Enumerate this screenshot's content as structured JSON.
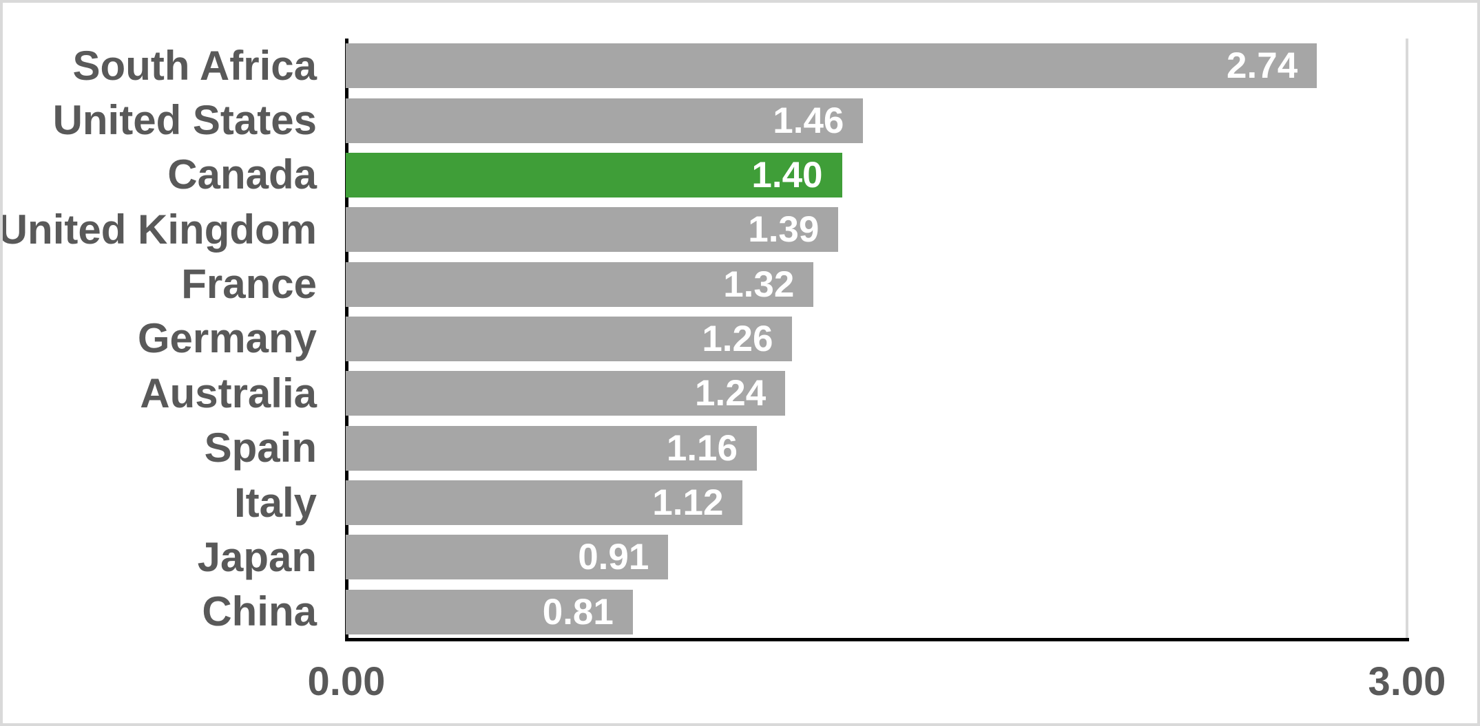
{
  "chart_data": {
    "type": "bar",
    "orientation": "horizontal",
    "title": "",
    "xlabel": "",
    "ylabel": "",
    "categories": [
      "South Africa",
      "United States",
      "Canada",
      "United Kingdom",
      "France",
      "Germany",
      "Australia",
      "Spain",
      "Italy",
      "Japan",
      "China"
    ],
    "values": [
      2.74,
      1.46,
      1.4,
      1.39,
      1.32,
      1.26,
      1.24,
      1.16,
      1.12,
      0.91,
      0.81
    ],
    "value_labels": [
      "2.74",
      "1.46",
      "1.40",
      "1.39",
      "1.32",
      "1.26",
      "1.24",
      "1.16",
      "1.12",
      "0.91",
      "0.81"
    ],
    "highlight_index": 2,
    "highlight_category": "Canada",
    "xlim": [
      0,
      3
    ],
    "x_ticks": [
      "0.00",
      "3.00"
    ],
    "legend": null,
    "grid": "single vertical gridline at x=3.00, left and bottom solid black axis lines",
    "colors": {
      "bar_default": "#A6A6A6",
      "bar_highlight": "#3F9E38",
      "value_label": "#FFFFFF",
      "category_label": "#595959",
      "tick_label": "#595959",
      "axis_line": "#000000",
      "gridline": "#D9D9D9",
      "background": "#FFFFFF",
      "frame_border": "#D9D9D9"
    }
  }
}
